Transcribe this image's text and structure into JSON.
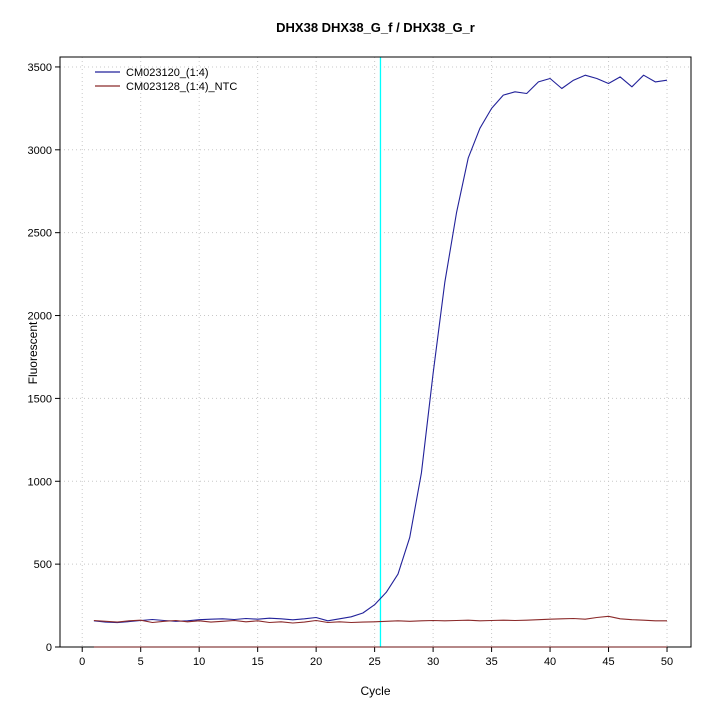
{
  "chart_data": {
    "type": "line",
    "title": "DHX38  DHX38_G_f / DHX38_G_r",
    "xlabel": "Cycle",
    "ylabel": "Fluorescent",
    "xlim": [
      -1.9,
      52.05
    ],
    "ylim": [
      0,
      3560
    ],
    "xticks": [
      0,
      5,
      10,
      15,
      20,
      25,
      30,
      35,
      40,
      45,
      50
    ],
    "yticks": [
      0,
      500,
      1000,
      1500,
      2000,
      2500,
      3000,
      3500
    ],
    "grid": true,
    "grid_color": "#c8c8c8",
    "legend_position": "top-left",
    "threshold_line": {
      "x": 25.5,
      "color": "#00ffff"
    },
    "x": [
      1,
      2,
      3,
      4,
      5,
      6,
      7,
      8,
      9,
      10,
      11,
      12,
      13,
      14,
      15,
      16,
      17,
      18,
      19,
      20,
      21,
      22,
      23,
      24,
      25,
      26,
      27,
      28,
      29,
      30,
      31,
      32,
      33,
      34,
      35,
      36,
      37,
      38,
      39,
      40,
      41,
      42,
      43,
      44,
      45,
      46,
      47,
      48,
      49,
      50
    ],
    "series": [
      {
        "name": "CM023120_(1:4)",
        "color": "#22229a",
        "in_legend": true,
        "values": [
          158,
          150,
          147,
          153,
          160,
          166,
          160,
          155,
          158,
          165,
          168,
          170,
          166,
          172,
          168,
          174,
          170,
          164,
          170,
          178,
          158,
          170,
          182,
          205,
          255,
          330,
          440,
          660,
          1050,
          1650,
          2200,
          2620,
          2950,
          3130,
          3250,
          3330,
          3350,
          3340,
          3410,
          3430,
          3370,
          3420,
          3450,
          3430,
          3400,
          3440,
          3380,
          3450,
          3410,
          3420
        ]
      },
      {
        "name": "CM023128_(1:4)_NTC",
        "color": "#8b2a2a",
        "in_legend": true,
        "values": [
          160,
          155,
          150,
          158,
          162,
          148,
          155,
          160,
          152,
          158,
          150,
          155,
          160,
          152,
          158,
          148,
          152,
          145,
          150,
          160,
          148,
          152,
          148,
          150,
          152,
          155,
          158,
          155,
          158,
          160,
          158,
          160,
          162,
          158,
          160,
          162,
          160,
          162,
          165,
          168,
          170,
          172,
          168,
          178,
          185,
          170,
          165,
          162,
          158,
          158
        ]
      },
      {
        "name": "zero-baseline",
        "color": "#6b1212",
        "in_legend": false,
        "values": [
          0,
          0,
          0,
          0,
          0,
          0,
          0,
          0,
          0,
          0,
          0,
          0,
          0,
          0,
          0,
          0,
          0,
          0,
          0,
          0,
          0,
          0,
          0,
          0,
          0,
          0,
          0,
          0,
          0,
          0,
          0,
          0,
          0,
          0,
          0,
          0,
          0,
          0,
          0,
          0,
          0,
          0,
          0,
          0,
          0,
          0,
          0,
          0,
          0,
          0
        ]
      }
    ]
  }
}
